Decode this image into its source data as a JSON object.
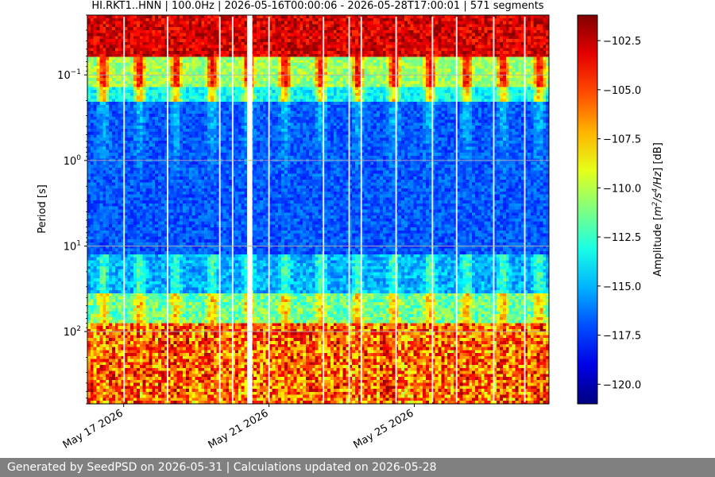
{
  "chart_data": {
    "type": "heatmap",
    "title": "HI.RKT1..HNN | 100.0Hz | 2026-05-16T00:00:06 - 2026-05-28T17:00:01 | 571 segments",
    "ylabel": "Period [s]",
    "xlabel": "",
    "y_scale": "log",
    "y_inverted": true,
    "ylim": [
      0.02,
      700
    ],
    "y_ticks": [
      {
        "value": 0.1,
        "base": "10",
        "exp": "−1"
      },
      {
        "value": 1,
        "base": "10",
        "exp": "0"
      },
      {
        "value": 10,
        "base": "10",
        "exp": "1"
      },
      {
        "value": 100,
        "base": "10",
        "exp": "2"
      }
    ],
    "xlim": [
      "2026-05-16",
      "2026-05-28T17:00:01"
    ],
    "x_ticks": [
      {
        "date": "2026-05-17",
        "label": "May 17 2026"
      },
      {
        "date": "2026-05-21",
        "label": "May 21 2026"
      },
      {
        "date": "2026-05-25",
        "label": "May 25 2026"
      }
    ],
    "grid": true,
    "colorbar": {
      "label_prefix": "Amplitude [",
      "label_suffix": "] [dB]",
      "unit_parts": [
        {
          "t": "m",
          "sup": false
        },
        {
          "t": "2",
          "sup": true
        },
        {
          "t": "/s",
          "sup": false
        },
        {
          "t": "4",
          "sup": true
        },
        {
          "t": "/Hz",
          "sup": false
        }
      ],
      "range": [
        -121,
        -101.2
      ],
      "ticks": [
        {
          "value": -102.5,
          "label": "−102.5"
        },
        {
          "value": -105,
          "label": "−105.0"
        },
        {
          "value": -107.5,
          "label": "−107.5"
        },
        {
          "value": -110,
          "label": "−110.0"
        },
        {
          "value": -112.5,
          "label": "−112.5"
        },
        {
          "value": -115,
          "label": "−115.0"
        },
        {
          "value": -117.5,
          "label": "−117.5"
        },
        {
          "value": -120,
          "label": "−120.0"
        }
      ],
      "colormap": "jet"
    },
    "data_gaps": [
      {
        "start": "2026-05-20T09:30",
        "end": "2026-05-20T13:00"
      }
    ],
    "white_streaks": [
      "2026-05-17T00:15",
      "2026-05-18T05:00",
      "2026-05-19T15:30",
      "2026-05-20T00:00",
      "2026-05-21T00:00",
      "2026-05-22T12:00",
      "2026-05-23T05:00",
      "2026-05-23T13:00",
      "2026-05-24T12:00",
      "2026-05-25T12:00",
      "2026-05-26T04:00",
      "2026-05-27T04:30",
      "2026-05-28T01:00"
    ]
  },
  "footer": {
    "text": "Generated by SeedPSD on 2026-05-31 | Calculations updated on 2026-05-28"
  }
}
